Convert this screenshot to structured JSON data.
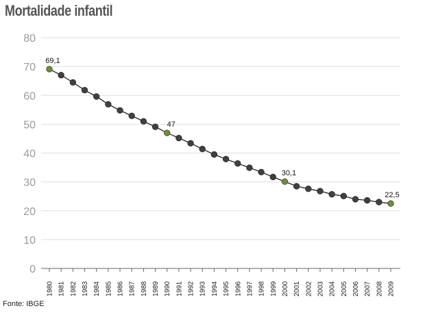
{
  "title": "Mortalidade infantil",
  "source": "Fonte: IBGE",
  "chart_data": {
    "type": "line",
    "title": "Mortalidade infantil",
    "xlabel": "",
    "ylabel": "",
    "ylim": [
      0,
      80
    ],
    "yticks": [
      0,
      10,
      20,
      30,
      40,
      50,
      60,
      70,
      80
    ],
    "grid": true,
    "x": [
      "1980",
      "1981",
      "1982",
      "1983",
      "1984",
      "1985",
      "1986",
      "1987",
      "1988",
      "1989",
      "1990",
      "1991",
      "1992",
      "1993",
      "1994",
      "1995",
      "1996",
      "1997",
      "1998",
      "1999",
      "2000",
      "2001",
      "2002",
      "2003",
      "2004",
      "2005",
      "2006",
      "2007",
      "2008",
      "2009"
    ],
    "series": [
      {
        "values": [
          69.1,
          67.0,
          64.5,
          61.8,
          59.6,
          56.9,
          54.8,
          52.9,
          51.0,
          49.1,
          47.0,
          45.2,
          43.4,
          41.4,
          39.5,
          37.9,
          36.4,
          34.9,
          33.4,
          31.7,
          30.1,
          28.5,
          27.6,
          26.8,
          25.7,
          25.1,
          24.0,
          23.6,
          23.0,
          22.5
        ],
        "highlighted": [
          0,
          10,
          20,
          29
        ],
        "labels": [
          {
            "index": 0,
            "text": "69,1"
          },
          {
            "index": 10,
            "text": "47"
          },
          {
            "index": 20,
            "text": "30,1"
          },
          {
            "index": 29,
            "text": "22,5"
          }
        ]
      }
    ],
    "colors": {
      "line": "#111111",
      "marker": "#404040",
      "highlight": "#6f8b3e",
      "grid": "#dddddd",
      "axis": "#9a9a9a"
    }
  }
}
